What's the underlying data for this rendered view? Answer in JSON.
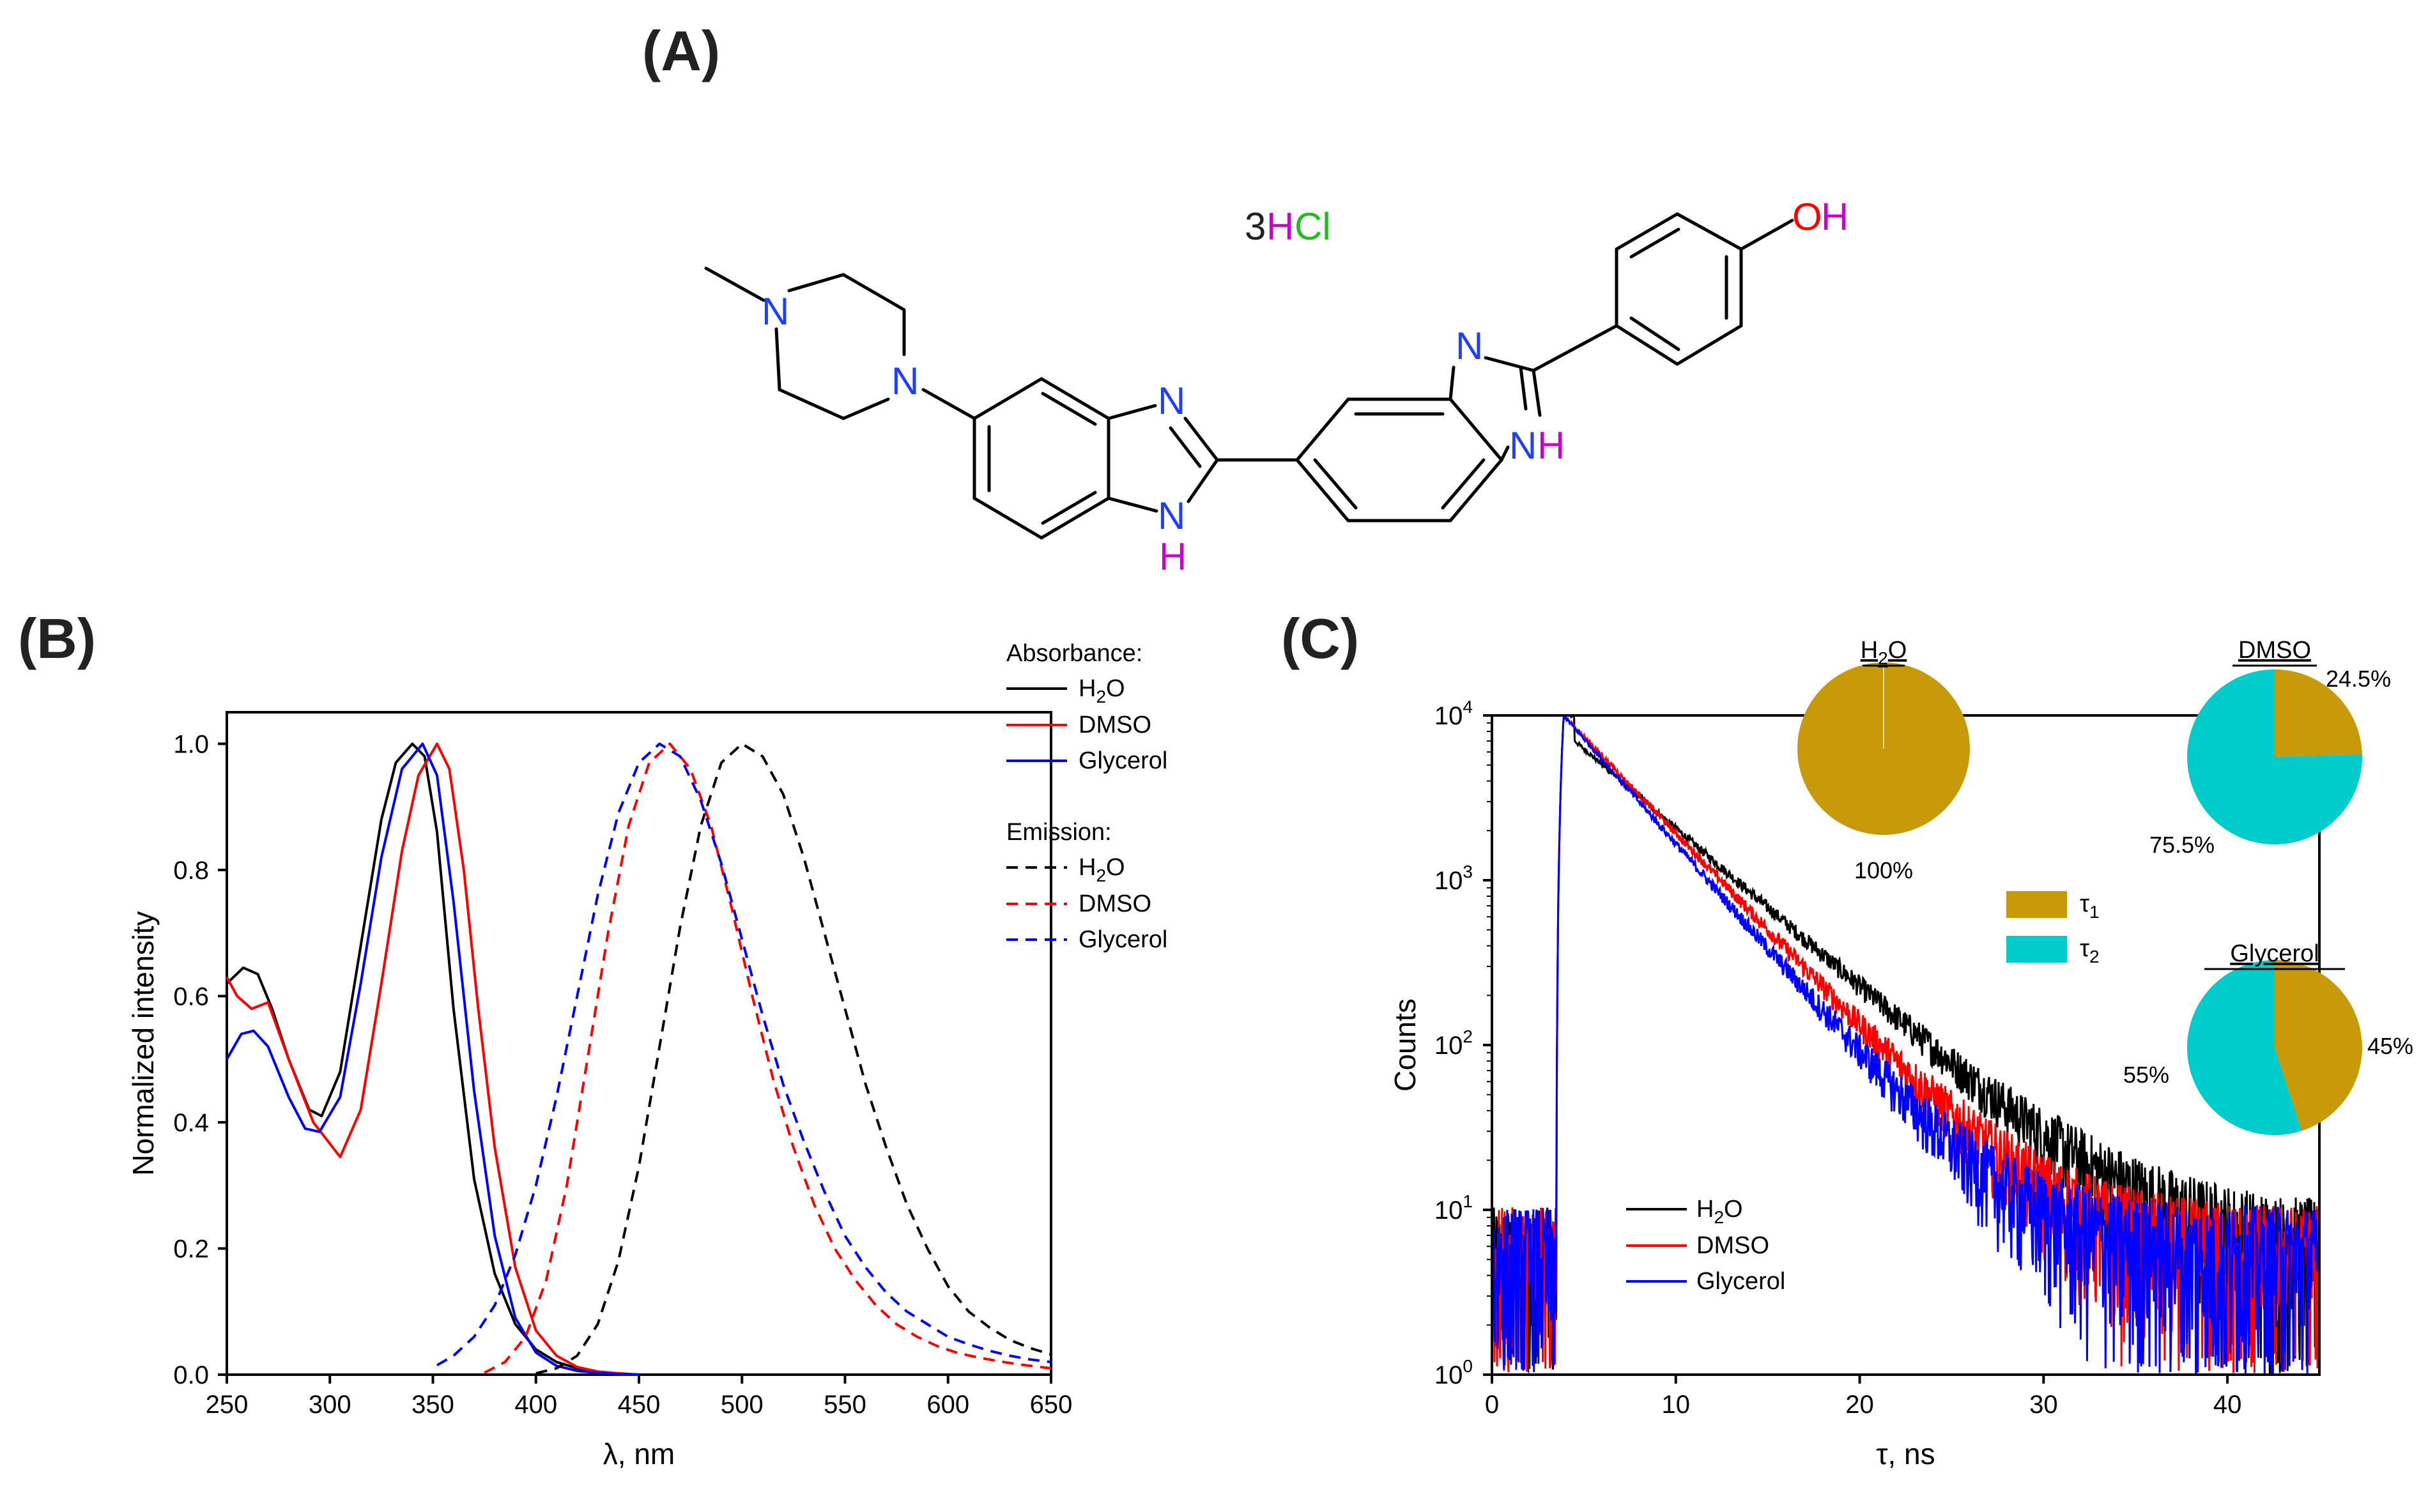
{
  "panels": {
    "a": "(A)",
    "b": "(B)",
    "c": "(C)"
  },
  "molecule": {
    "salt": {
      "part1": "3",
      "part2": "H",
      "part3": "Cl"
    },
    "atoms": {
      "n_pip_top": "N",
      "n_pip_bottom": "N",
      "n_imid1_top": "N",
      "n_imid1_bottom": "N",
      "h_imid1": "H",
      "n_imid2_top": "N",
      "n_imid2_nh_n": "N",
      "n_imid2_nh_h": "H",
      "oh_o": "O",
      "oh_h": "H"
    },
    "colors": {
      "carbon_bond": "#000000",
      "nitrogen": "#1f3fff",
      "hydrogen": "#cc00cc",
      "oxygen": "#ff0000",
      "chlorine": "#22bb22"
    }
  },
  "chart_data": [
    {
      "type": "line",
      "panel": "B",
      "xlabel": "λ, nm",
      "ylabel": "Normalized intensity",
      "xlim": [
        250,
        650
      ],
      "ylim": [
        0,
        1.05
      ],
      "xticks": [
        250,
        300,
        350,
        400,
        450,
        500,
        550,
        600,
        650
      ],
      "yticks": [
        0.0,
        0.2,
        0.4,
        0.6,
        0.8,
        1.0
      ],
      "ytick_labels": [
        "0.0",
        "0.2",
        "0.4",
        "0.6",
        "0.8",
        "1.0"
      ],
      "legend": {
        "absorbance_title": "Absorbance:",
        "emission_title": "Emission:",
        "entries": [
          {
            "group": "Absorbance",
            "main": "H",
            "sub": "2",
            "tail": "O",
            "style": "solid",
            "color": "#000000"
          },
          {
            "group": "Absorbance",
            "main": "DMSO",
            "sub": "",
            "tail": "",
            "style": "solid",
            "color": "#ff0000"
          },
          {
            "group": "Absorbance",
            "main": "Glycerol",
            "sub": "",
            "tail": "",
            "style": "solid",
            "color": "#0000ff"
          },
          {
            "group": "Emission",
            "main": "H",
            "sub": "2",
            "tail": "O",
            "style": "dashed",
            "color": "#000000"
          },
          {
            "group": "Emission",
            "main": "DMSO",
            "sub": "",
            "tail": "",
            "style": "dashed",
            "color": "#ff0000"
          },
          {
            "group": "Emission",
            "main": "Glycerol",
            "sub": "",
            "tail": "",
            "style": "dashed",
            "color": "#0000ff"
          }
        ]
      },
      "series": [
        {
          "name": "Absorbance H2O",
          "style": "solid",
          "color": "#000000",
          "x": [
            250,
            258,
            265,
            272,
            280,
            290,
            296,
            305,
            315,
            325,
            332,
            340,
            346,
            352,
            360,
            370,
            380,
            390,
            400,
            410,
            420,
            430,
            440,
            450
          ],
          "y": [
            0.62,
            0.645,
            0.635,
            0.58,
            0.5,
            0.42,
            0.41,
            0.48,
            0.68,
            0.88,
            0.97,
            1.0,
            0.98,
            0.86,
            0.58,
            0.31,
            0.16,
            0.08,
            0.04,
            0.02,
            0.01,
            0.004,
            0.002,
            0.0
          ]
        },
        {
          "name": "Absorbance DMSO",
          "style": "solid",
          "color": "#ff0000",
          "x": [
            250,
            255,
            262,
            270,
            280,
            292,
            305,
            315,
            325,
            335,
            343,
            352,
            358,
            365,
            372,
            380,
            390,
            400,
            410,
            420,
            430,
            440,
            450
          ],
          "y": [
            0.63,
            0.6,
            0.58,
            0.59,
            0.5,
            0.4,
            0.345,
            0.42,
            0.62,
            0.83,
            0.95,
            1.0,
            0.96,
            0.8,
            0.58,
            0.36,
            0.17,
            0.07,
            0.03,
            0.012,
            0.005,
            0.002,
            0.0
          ]
        },
        {
          "name": "Absorbance Glycerol",
          "style": "solid",
          "color": "#0000ff",
          "x": [
            250,
            257,
            263,
            270,
            280,
            288,
            295,
            305,
            315,
            325,
            335,
            345,
            352,
            360,
            370,
            380,
            390,
            400,
            410,
            420,
            430,
            440,
            450
          ],
          "y": [
            0.5,
            0.54,
            0.545,
            0.52,
            0.44,
            0.39,
            0.385,
            0.44,
            0.62,
            0.82,
            0.96,
            1.0,
            0.95,
            0.75,
            0.45,
            0.22,
            0.09,
            0.035,
            0.014,
            0.006,
            0.003,
            0.001,
            0.0
          ]
        },
        {
          "name": "Emission H2O",
          "style": "dashed",
          "color": "#000000",
          "x": [
            400,
            410,
            420,
            430,
            440,
            450,
            460,
            470,
            480,
            490,
            500,
            510,
            520,
            530,
            540,
            550,
            560,
            570,
            580,
            590,
            600,
            610,
            620,
            630,
            640,
            650
          ],
          "y": [
            0.002,
            0.01,
            0.03,
            0.08,
            0.18,
            0.33,
            0.52,
            0.71,
            0.87,
            0.97,
            1.0,
            0.98,
            0.92,
            0.82,
            0.7,
            0.58,
            0.46,
            0.36,
            0.27,
            0.2,
            0.14,
            0.1,
            0.075,
            0.055,
            0.042,
            0.032
          ]
        },
        {
          "name": "Emission DMSO",
          "style": "dashed",
          "color": "#ff0000",
          "x": [
            375,
            385,
            395,
            405,
            415,
            425,
            435,
            445,
            455,
            465,
            475,
            485,
            495,
            505,
            515,
            525,
            535,
            545,
            555,
            565,
            575,
            585,
            595,
            605,
            615,
            625,
            635,
            645,
            650
          ],
          "y": [
            0.003,
            0.02,
            0.06,
            0.15,
            0.3,
            0.5,
            0.7,
            0.87,
            0.97,
            1.0,
            0.96,
            0.87,
            0.74,
            0.6,
            0.47,
            0.36,
            0.27,
            0.2,
            0.15,
            0.11,
            0.08,
            0.06,
            0.045,
            0.034,
            0.027,
            0.021,
            0.016,
            0.012,
            0.01
          ]
        },
        {
          "name": "Emission Glycerol",
          "style": "dashed",
          "color": "#0000ff",
          "x": [
            352,
            360,
            370,
            380,
            390,
            400,
            410,
            420,
            430,
            440,
            450,
            460,
            470,
            480,
            490,
            500,
            510,
            520,
            530,
            540,
            550,
            560,
            570,
            580,
            590,
            600,
            610,
            620,
            630,
            640,
            650
          ],
          "y": [
            0.015,
            0.03,
            0.06,
            0.11,
            0.19,
            0.3,
            0.44,
            0.6,
            0.76,
            0.89,
            0.97,
            1.0,
            0.98,
            0.91,
            0.81,
            0.69,
            0.57,
            0.46,
            0.37,
            0.29,
            0.22,
            0.17,
            0.13,
            0.1,
            0.08,
            0.06,
            0.048,
            0.038,
            0.03,
            0.024,
            0.02
          ]
        }
      ]
    },
    {
      "type": "line",
      "panel": "C",
      "xlabel": "τ, ns",
      "ylabel": "Counts",
      "yscale": "log",
      "xlim": [
        0,
        45
      ],
      "ylim": [
        1,
        10000
      ],
      "xticks": [
        0,
        10,
        20,
        30,
        40
      ],
      "yticks": [
        1,
        10,
        100,
        1000,
        10000
      ],
      "ytick_labels": [
        {
          "base": "10",
          "exp": "0"
        },
        {
          "base": "10",
          "exp": "1"
        },
        {
          "base": "10",
          "exp": "2"
        },
        {
          "base": "10",
          "exp": "3"
        },
        {
          "base": "10",
          "exp": "4"
        }
      ],
      "legend": {
        "entries": [
          {
            "main": "H",
            "sub": "2",
            "tail": "O",
            "color": "#000000"
          },
          {
            "main": "DMSO",
            "sub": "",
            "tail": "",
            "color": "#ff0000"
          },
          {
            "main": "Glycerol",
            "sub": "",
            "tail": "",
            "color": "#0000ff"
          }
        ]
      },
      "series": [
        {
          "name": "H2O",
          "color": "#000000",
          "rise_ns": 3.5,
          "peak_ns": 3.9,
          "peak": 10000,
          "knee": 7000,
          "knee_ns": 4.5,
          "tau_ns": 4.5,
          "background": 5
        },
        {
          "name": "DMSO",
          "color": "#ff0000",
          "rise_ns": 3.5,
          "peak_ns": 3.9,
          "peak": 10000,
          "knee": 10000,
          "knee_ns": 3.9,
          "tau_ns": 3.7,
          "background": 5
        },
        {
          "name": "Glycerol",
          "color": "#0000ff",
          "rise_ns": 3.5,
          "peak_ns": 3.9,
          "peak": 10000,
          "knee": 10000,
          "knee_ns": 3.9,
          "tau_ns": 3.4,
          "background": 5
        }
      ],
      "lifetime_legend": [
        {
          "main": "τ",
          "sub": "1",
          "color": "#c89a0a"
        },
        {
          "main": "τ",
          "sub": "2",
          "color": "#00cccc"
        }
      ],
      "pies": [
        {
          "title_main": "H",
          "title_sub": "2",
          "title_tail": "O",
          "slices": [
            {
              "label": "τ1",
              "value": 100,
              "color": "#c89a0a"
            }
          ],
          "labels": [
            "100%"
          ]
        },
        {
          "title_main": "DMSO",
          "title_sub": "",
          "title_tail": "",
          "slices": [
            {
              "label": "τ1",
              "value": 24.5,
              "color": "#c89a0a"
            },
            {
              "label": "τ2",
              "value": 75.5,
              "color": "#00cccc"
            }
          ],
          "labels": [
            "24.5%",
            "75.5%"
          ]
        },
        {
          "title_main": "Glycerol",
          "title_sub": "",
          "title_tail": "",
          "slices": [
            {
              "label": "τ1",
              "value": 45,
              "color": "#c89a0a"
            },
            {
              "label": "τ2",
              "value": 55,
              "color": "#00cccc"
            }
          ],
          "labels": [
            "45%",
            "55%"
          ]
        }
      ]
    }
  ]
}
